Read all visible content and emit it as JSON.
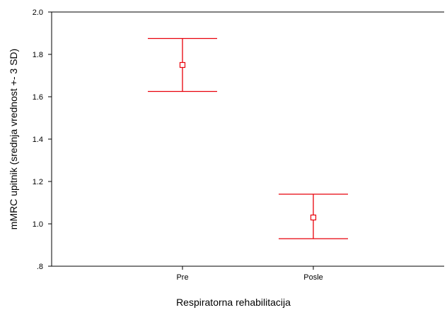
{
  "chart_data": {
    "type": "errorbar",
    "xlabel": "Respiratorna rehabilitacija",
    "ylabel": "mMRC upitnik (srednja vrednost +- 3 SD)",
    "ylim": [
      0.8,
      2.0
    ],
    "yticks": [
      0.8,
      1.0,
      1.2,
      1.4,
      1.6,
      1.8,
      2.0
    ],
    "ytick_labels": [
      ".8",
      "1.0",
      "1.2",
      "1.4",
      "1.6",
      "1.8",
      "2.0"
    ],
    "categories": [
      "Pre",
      "Posle"
    ],
    "series": [
      {
        "points": [
          {
            "category": "Pre",
            "mean": 1.75,
            "lower": 1.625,
            "upper": 1.875
          },
          {
            "category": "Posle",
            "mean": 1.03,
            "lower": 0.93,
            "upper": 1.14
          }
        ]
      }
    ],
    "colors": {
      "marks": "#e8000b",
      "axes": "#000000"
    },
    "grid": false,
    "legend": "none"
  }
}
